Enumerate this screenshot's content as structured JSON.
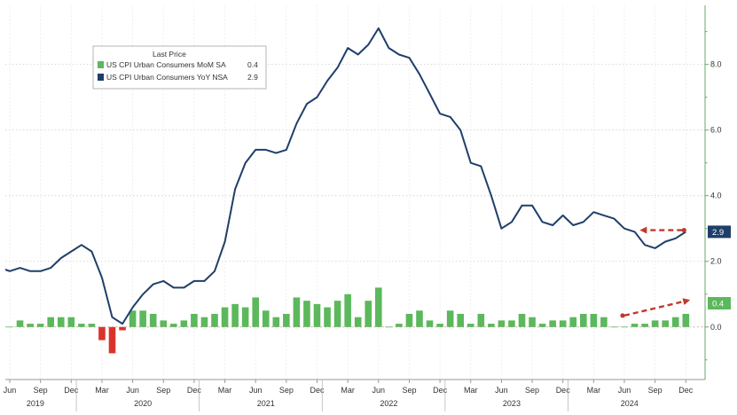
{
  "chart_data": {
    "type": "bar+line",
    "legend": {
      "title": "Last Price",
      "items": [
        {
          "label": "US CPI Urban Consumers MoM SA",
          "value": "0.4",
          "color": "#5cb85c"
        },
        {
          "label": "US CPI Urban Consumers YoY NSA",
          "value": "2.9",
          "color": "#1f3f6b"
        }
      ]
    },
    "y_axis": {
      "ticks": [
        "8.0",
        "6.0",
        "4.0",
        "2.0",
        "0.0"
      ],
      "tick_values": [
        8,
        6,
        4,
        2,
        0
      ],
      "ylim": [
        -1.6,
        9.8
      ],
      "side": "right"
    },
    "x_axis": {
      "month_labels": [
        "Jun",
        "Sep",
        "Dec",
        "Mar",
        "Jun",
        "Sep",
        "Dec",
        "Mar",
        "Jun",
        "Sep",
        "Dec",
        "Mar",
        "Jun",
        "Sep",
        "Dec",
        "Mar",
        "Jun",
        "Sep",
        "Dec",
        "Mar",
        "Jun",
        "Sep",
        "Dec"
      ],
      "year_labels": [
        "2019",
        "2020",
        "2021",
        "2022",
        "2023",
        "2024"
      ]
    },
    "series": [
      {
        "name": "US CPI Urban Consumers YoY NSA",
        "kind": "line",
        "color": "#1f3f6b",
        "x": [
          "2019-06",
          "2019-07",
          "2019-08",
          "2019-09",
          "2019-10",
          "2019-11",
          "2019-12",
          "2020-01",
          "2020-02",
          "2020-03",
          "2020-04",
          "2020-05",
          "2020-06",
          "2020-07",
          "2020-08",
          "2020-09",
          "2020-10",
          "2020-11",
          "2020-12",
          "2021-01",
          "2021-02",
          "2021-03",
          "2021-04",
          "2021-05",
          "2021-06",
          "2021-07",
          "2021-08",
          "2021-09",
          "2021-10",
          "2021-11",
          "2021-12",
          "2022-01",
          "2022-02",
          "2022-03",
          "2022-04",
          "2022-05",
          "2022-06",
          "2022-07",
          "2022-08",
          "2022-09",
          "2022-10",
          "2022-11",
          "2022-12",
          "2023-01",
          "2023-02",
          "2023-03",
          "2023-04",
          "2023-05",
          "2023-06",
          "2023-07",
          "2023-08",
          "2023-09",
          "2023-10",
          "2023-11",
          "2023-12",
          "2024-01",
          "2024-02",
          "2024-03",
          "2024-04",
          "2024-05",
          "2024-06",
          "2024-07",
          "2024-08",
          "2024-09",
          "2024-10",
          "2024-11",
          "2024-12"
        ],
        "values": [
          1.7,
          1.8,
          1.7,
          1.7,
          1.8,
          2.1,
          2.3,
          2.5,
          2.3,
          1.5,
          0.3,
          0.1,
          0.6,
          1.0,
          1.3,
          1.4,
          1.2,
          1.2,
          1.4,
          1.4,
          1.7,
          2.6,
          4.2,
          5.0,
          5.4,
          5.4,
          5.3,
          5.4,
          6.2,
          6.8,
          7.0,
          7.5,
          7.9,
          8.5,
          8.3,
          8.6,
          9.1,
          8.5,
          8.3,
          8.2,
          7.7,
          7.1,
          6.5,
          6.4,
          6.0,
          5.0,
          4.9,
          4.0,
          3.0,
          3.2,
          3.7,
          3.7,
          3.2,
          3.1,
          3.4,
          3.1,
          3.2,
          3.5,
          3.4,
          3.3,
          3.0,
          2.9,
          2.5,
          2.4,
          2.6,
          2.7,
          2.9
        ]
      },
      {
        "name": "US CPI Urban Consumers MoM SA",
        "kind": "bar",
        "color": "#5cb85c",
        "negative_color": "#d9342b",
        "x": [
          "2019-06",
          "2019-07",
          "2019-08",
          "2019-09",
          "2019-10",
          "2019-11",
          "2019-12",
          "2020-01",
          "2020-02",
          "2020-03",
          "2020-04",
          "2020-05",
          "2020-06",
          "2020-07",
          "2020-08",
          "2020-09",
          "2020-10",
          "2020-11",
          "2020-12",
          "2021-01",
          "2021-02",
          "2021-03",
          "2021-04",
          "2021-05",
          "2021-06",
          "2021-07",
          "2021-08",
          "2021-09",
          "2021-10",
          "2021-11",
          "2021-12",
          "2022-01",
          "2022-02",
          "2022-03",
          "2022-04",
          "2022-05",
          "2022-06",
          "2022-07",
          "2022-08",
          "2022-09",
          "2022-10",
          "2022-11",
          "2022-12",
          "2023-01",
          "2023-02",
          "2023-03",
          "2023-04",
          "2023-05",
          "2023-06",
          "2023-07",
          "2023-08",
          "2023-09",
          "2023-10",
          "2023-11",
          "2023-12",
          "2024-01",
          "2024-02",
          "2024-03",
          "2024-04",
          "2024-05",
          "2024-06",
          "2024-07",
          "2024-08",
          "2024-09",
          "2024-10",
          "2024-11",
          "2024-12"
        ],
        "values": [
          0.0,
          0.2,
          0.1,
          0.1,
          0.3,
          0.3,
          0.3,
          0.1,
          0.1,
          -0.4,
          -0.8,
          -0.1,
          0.5,
          0.5,
          0.4,
          0.2,
          0.1,
          0.2,
          0.4,
          0.3,
          0.4,
          0.6,
          0.7,
          0.6,
          0.9,
          0.5,
          0.3,
          0.4,
          0.9,
          0.8,
          0.7,
          0.6,
          0.8,
          1.0,
          0.3,
          0.8,
          1.2,
          0.0,
          0.1,
          0.4,
          0.5,
          0.2,
          0.1,
          0.5,
          0.4,
          0.1,
          0.4,
          0.1,
          0.2,
          0.2,
          0.4,
          0.3,
          0.1,
          0.2,
          0.2,
          0.3,
          0.4,
          0.4,
          0.3,
          0.0,
          0.0,
          0.1,
          0.1,
          0.2,
          0.2,
          0.3,
          0.4
        ]
      }
    ],
    "last_values": {
      "yoy": {
        "text": "2.9",
        "color": "#1f3f6b"
      },
      "mom": {
        "text": "0.4",
        "color": "#5cb85c"
      }
    },
    "annotations": [
      {
        "kind": "dashed-arrow",
        "color": "#c0392b",
        "direction": "left",
        "near": "YoY line end"
      },
      {
        "kind": "dashed-arrow",
        "color": "#c0392b",
        "direction": "up-right",
        "near": "MoM bars end"
      }
    ]
  }
}
